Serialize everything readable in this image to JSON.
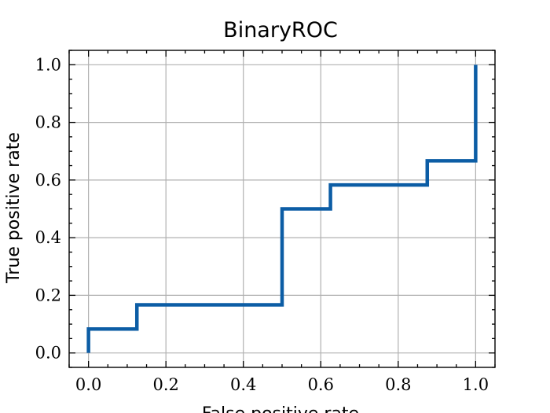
{
  "chart_data": {
    "type": "line",
    "title": "BinaryROC",
    "xlabel": "False positive rate",
    "ylabel": "True positive rate",
    "xlim": [
      -0.05,
      1.05
    ],
    "ylim": [
      -0.05,
      1.05
    ],
    "grid": true,
    "xticks": [
      "0.0",
      "0.2",
      "0.4",
      "0.6",
      "0.8",
      "1.0"
    ],
    "yticks": [
      "0.0",
      "0.2",
      "0.4",
      "0.6",
      "0.8",
      "1.0"
    ],
    "series": [
      {
        "color": "#0c5da5",
        "x": [
          0.0,
          0.0,
          0.125,
          0.125,
          0.5,
          0.5,
          0.625,
          0.625,
          0.875,
          0.875,
          1.0,
          1.0
        ],
        "y": [
          0.0,
          0.083,
          0.083,
          0.167,
          0.167,
          0.5,
          0.5,
          0.583,
          0.583,
          0.667,
          0.667,
          1.0
        ]
      }
    ]
  }
}
